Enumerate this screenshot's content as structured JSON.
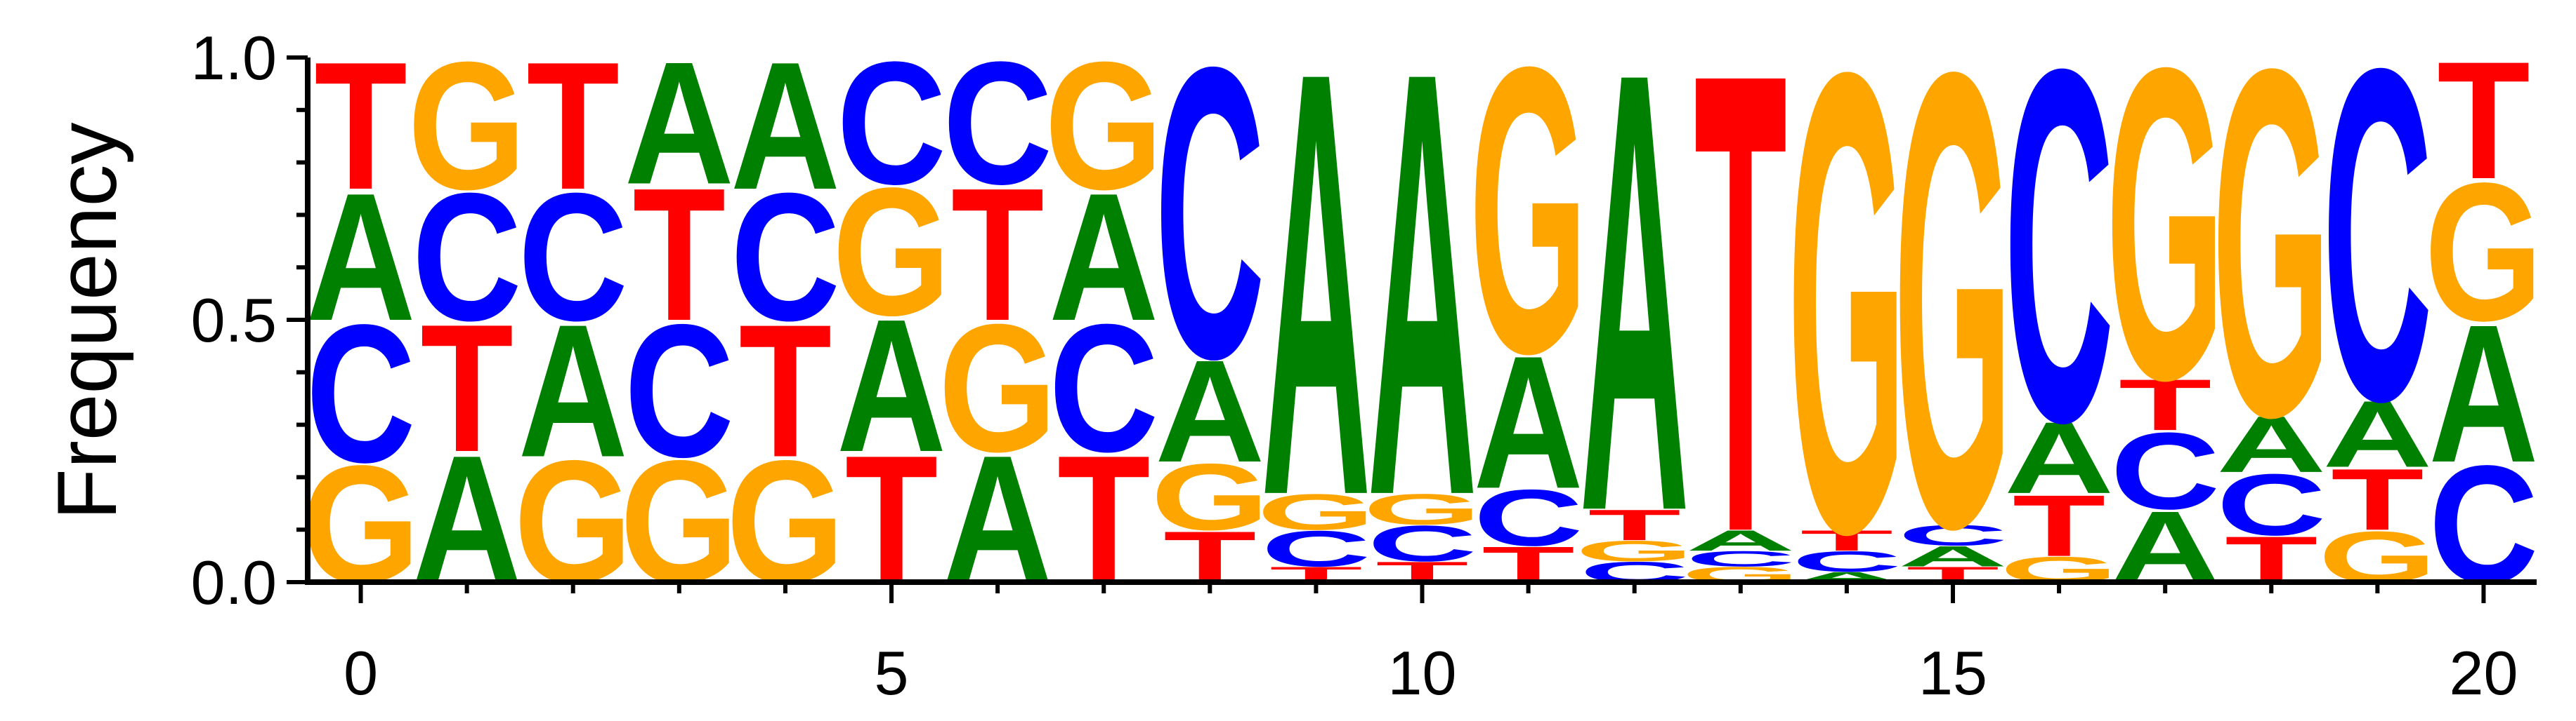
{
  "chart_data": {
    "type": "sequence-logo",
    "ylabel": "Frequency",
    "ylim": [
      0,
      1
    ],
    "yticks": [
      "0.0",
      "0.5",
      "1.0"
    ],
    "xlim": [
      -0.5,
      20.5
    ],
    "xticks": [
      "0",
      "5",
      "10",
      "15",
      "20"
    ],
    "colors": {
      "A": "#008000",
      "C": "#0000ff",
      "G": "#ffa500",
      "T": "#ff0000"
    },
    "positions": [
      {
        "pos": 0,
        "stack": [
          [
            "G",
            0.23
          ],
          [
            "C",
            0.27
          ],
          [
            "A",
            0.25
          ],
          [
            "T",
            0.25
          ]
        ]
      },
      {
        "pos": 1,
        "stack": [
          [
            "A",
            0.25
          ],
          [
            "T",
            0.25
          ],
          [
            "C",
            0.25
          ],
          [
            "G",
            0.25
          ]
        ]
      },
      {
        "pos": 2,
        "stack": [
          [
            "G",
            0.24
          ],
          [
            "A",
            0.26
          ],
          [
            "C",
            0.25
          ],
          [
            "T",
            0.25
          ]
        ]
      },
      {
        "pos": 3,
        "stack": [
          [
            "G",
            0.24
          ],
          [
            "C",
            0.26
          ],
          [
            "T",
            0.26
          ],
          [
            "A",
            0.24
          ]
        ]
      },
      {
        "pos": 4,
        "stack": [
          [
            "G",
            0.24
          ],
          [
            "T",
            0.26
          ],
          [
            "C",
            0.25
          ],
          [
            "A",
            0.25
          ]
        ]
      },
      {
        "pos": 5,
        "stack": [
          [
            "T",
            0.25
          ],
          [
            "A",
            0.26
          ],
          [
            "G",
            0.25
          ],
          [
            "C",
            0.24
          ]
        ]
      },
      {
        "pos": 6,
        "stack": [
          [
            "A",
            0.25
          ],
          [
            "G",
            0.25
          ],
          [
            "T",
            0.26
          ],
          [
            "C",
            0.24
          ]
        ]
      },
      {
        "pos": 7,
        "stack": [
          [
            "T",
            0.25
          ],
          [
            "C",
            0.25
          ],
          [
            "A",
            0.25
          ],
          [
            "G",
            0.25
          ]
        ]
      },
      {
        "pos": 8,
        "stack": [
          [
            "T",
            0.1
          ],
          [
            "G",
            0.13
          ],
          [
            "A",
            0.2
          ],
          [
            "C",
            0.57
          ]
        ]
      },
      {
        "pos": 9,
        "stack": [
          [
            "T",
            0.03
          ],
          [
            "C",
            0.07
          ],
          [
            "G",
            0.07
          ],
          [
            "A",
            0.83
          ]
        ]
      },
      {
        "pos": 10,
        "stack": [
          [
            "T",
            0.04
          ],
          [
            "C",
            0.07
          ],
          [
            "G",
            0.06
          ],
          [
            "A",
            0.83
          ]
        ]
      },
      {
        "pos": 11,
        "stack": [
          [
            "T",
            0.07
          ],
          [
            "C",
            0.11
          ],
          [
            "A",
            0.26
          ],
          [
            "G",
            0.56
          ]
        ]
      },
      {
        "pos": 12,
        "stack": [
          [
            "C",
            0.04
          ],
          [
            "G",
            0.04
          ],
          [
            "T",
            0.06
          ],
          [
            "A",
            0.86
          ]
        ]
      },
      {
        "pos": 13,
        "stack": [
          [
            "G",
            0.03
          ],
          [
            "C",
            0.03
          ],
          [
            "A",
            0.04
          ],
          [
            "T",
            0.9
          ]
        ]
      },
      {
        "pos": 14,
        "stack": [
          [
            "A",
            0.02
          ],
          [
            "C",
            0.04
          ],
          [
            "T",
            0.04
          ],
          [
            "G",
            0.9
          ]
        ]
      },
      {
        "pos": 15,
        "stack": [
          [
            "T",
            0.03
          ],
          [
            "A",
            0.04
          ],
          [
            "C",
            0.04
          ],
          [
            "G",
            0.89
          ]
        ]
      },
      {
        "pos": 16,
        "stack": [
          [
            "G",
            0.05
          ],
          [
            "T",
            0.12
          ],
          [
            "A",
            0.14
          ],
          [
            "C",
            0.69
          ]
        ]
      },
      {
        "pos": 17,
        "stack": [
          [
            "A",
            0.14
          ],
          [
            "C",
            0.15
          ],
          [
            "T",
            0.1
          ],
          [
            "G",
            0.61
          ]
        ]
      },
      {
        "pos": 18,
        "stack": [
          [
            "T",
            0.09
          ],
          [
            "C",
            0.12
          ],
          [
            "A",
            0.11
          ],
          [
            "G",
            0.68
          ]
        ]
      },
      {
        "pos": 19,
        "stack": [
          [
            "G",
            0.1
          ],
          [
            "T",
            0.12
          ],
          [
            "A",
            0.13
          ],
          [
            "C",
            0.65
          ]
        ]
      },
      {
        "pos": 20,
        "stack": [
          [
            "C",
            0.23
          ],
          [
            "A",
            0.27
          ],
          [
            "G",
            0.27
          ],
          [
            "T",
            0.23
          ]
        ]
      }
    ]
  }
}
